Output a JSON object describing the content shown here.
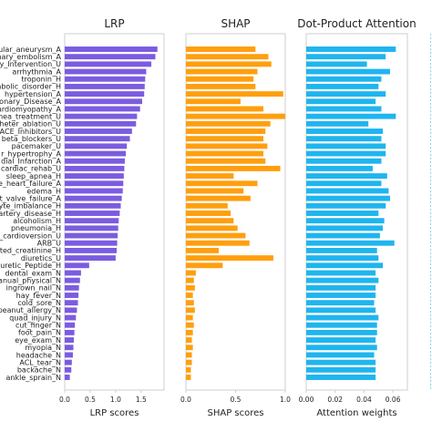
{
  "chart_data": {
    "type": "bar",
    "orientation": "horizontal",
    "categories": [
      "ular_aneurysm_A",
      "nary_embolism_A",
      "y_Intervention_U",
      "arrhythmia_A",
      "troponin_H",
      "abolic_disorder_H",
      "hypertension_A",
      "onary_Disease_A",
      "ardiomyopathy_A",
      "nea_treatment_U",
      "heter_ablation_U",
      "ACE_Inhibitors_U",
      "beta_blockers_U",
      "pacemaker_U",
      "r_hypertrophy_A",
      "dial_Infarction_A",
      "cardiac_rehab_U",
      "sleep_apnea_H",
      "e_heart_failure_A",
      "edema_H",
      "t_valve_failure_A",
      "yte_imbalance_H",
      "artery_disease_H",
      "alcoholism_H",
      "pneumonia_H",
      "_cardioversion_U",
      "ARB_U",
      "ted_creatinine_H",
      "diuretics_U",
      "diuretic_Peptide_H",
      "dental_exam_N",
      "anual_physical_N",
      "ingrown_nail_N",
      "hay_fever_N",
      "cold_sore_N",
      "peanut_allergy_N",
      "quad_injury_N",
      "cut_finger_N",
      "foot_pain_N",
      "eye_exam_N",
      "myopia_N",
      "headache_N",
      "ACL_tear_N",
      "backache_N",
      "ankle_sprain_N"
    ],
    "panels": [
      {
        "title": "LRP",
        "xlabel": "LRP scores",
        "xlim": [
          0,
          1.95
        ],
        "xticks": [
          "0.0",
          "0.5",
          "1.0",
          "1.5"
        ],
        "xtick_values": [
          0,
          0.5,
          1.0,
          1.5
        ],
        "color": "#7b5ce0",
        "values": [
          1.82,
          1.78,
          1.7,
          1.6,
          1.58,
          1.57,
          1.56,
          1.52,
          1.48,
          1.42,
          1.4,
          1.32,
          1.28,
          1.22,
          1.2,
          1.18,
          1.17,
          1.16,
          1.15,
          1.14,
          1.12,
          1.1,
          1.08,
          1.06,
          1.05,
          1.04,
          1.03,
          1.02,
          1.0,
          0.48,
          0.32,
          0.3,
          0.28,
          0.27,
          0.26,
          0.24,
          0.22,
          0.2,
          0.19,
          0.18,
          0.17,
          0.16,
          0.14,
          0.13,
          0.1
        ]
      },
      {
        "title": "SHAP",
        "xlabel": "SHAP scores",
        "xlim": [
          0,
          1.0
        ],
        "xticks": [
          "0.0",
          "0.5",
          "1.0"
        ],
        "xtick_values": [
          0,
          0.5,
          1.0
        ],
        "color": "#ff9f0e",
        "values": [
          0.7,
          0.83,
          0.86,
          0.72,
          0.68,
          0.7,
          0.98,
          0.55,
          0.78,
          1.0,
          0.85,
          0.8,
          0.78,
          0.82,
          0.78,
          0.8,
          0.95,
          0.48,
          0.72,
          0.58,
          0.65,
          0.42,
          0.45,
          0.48,
          0.52,
          0.6,
          0.64,
          0.33,
          0.88,
          0.37,
          0.1,
          0.08,
          0.09,
          0.07,
          0.08,
          0.09,
          0.07,
          0.08,
          0.07,
          0.06,
          0.07,
          0.06,
          0.06,
          0.05,
          0.05
        ]
      },
      {
        "title": "Dot-Product Attention",
        "xlabel": "Attention weights",
        "xlim": [
          0,
          0.07
        ],
        "xticks": [
          "0.00",
          "0.02",
          "0.04",
          "0.06"
        ],
        "xtick_values": [
          0,
          0.02,
          0.04,
          0.06
        ],
        "color": "#1fb5ef",
        "values": [
          0.062,
          0.055,
          0.042,
          0.058,
          0.052,
          0.05,
          0.055,
          0.048,
          0.052,
          0.062,
          0.043,
          0.053,
          0.052,
          0.055,
          0.055,
          0.052,
          0.046,
          0.056,
          0.052,
          0.057,
          0.058,
          0.055,
          0.05,
          0.054,
          0.053,
          0.051,
          0.061,
          0.049,
          0.05,
          0.053,
          0.048,
          0.05,
          0.048,
          0.048,
          0.047,
          0.048,
          0.05,
          0.049,
          0.049,
          0.048,
          0.049,
          0.047,
          0.048,
          0.048,
          0.048
        ]
      }
    ],
    "grid": false,
    "legend": "none"
  }
}
